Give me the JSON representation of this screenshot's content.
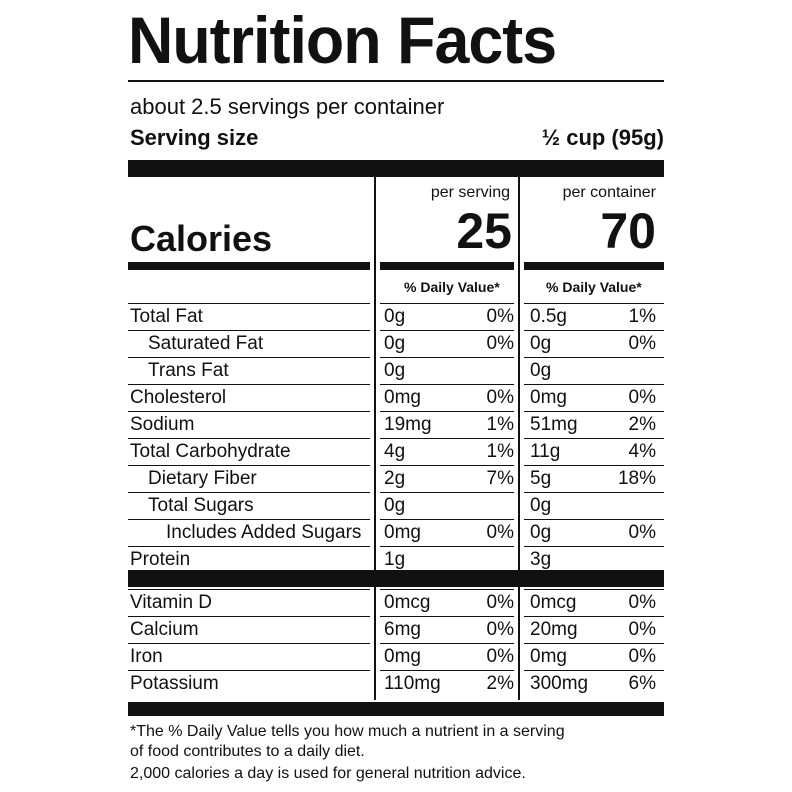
{
  "title": "Nutrition Facts",
  "servings_per_container": "about 2.5 servings per container",
  "serving_size_label": "Serving size",
  "serving_size_value": "½ cup (95g)",
  "calories_label": "Calories",
  "columns": {
    "per_serving_label": "per serving",
    "per_container_label": "per container",
    "calories_per_serving": "25",
    "calories_per_container": "70",
    "dv_header": "% Daily Value*"
  },
  "nutrients": [
    {
      "name": "Total Fat",
      "indent": 0,
      "serv_amt": "0g",
      "serv_dv": "0%",
      "cont_amt": "0.5g",
      "cont_dv": "1%"
    },
    {
      "name": "Saturated Fat",
      "indent": 1,
      "serv_amt": "0g",
      "serv_dv": "0%",
      "cont_amt": "0g",
      "cont_dv": "0%"
    },
    {
      "name": "Trans Fat",
      "indent": 1,
      "serv_amt": "0g",
      "serv_dv": "",
      "cont_amt": "0g",
      "cont_dv": ""
    },
    {
      "name": "Cholesterol",
      "indent": 0,
      "serv_amt": "0mg",
      "serv_dv": "0%",
      "cont_amt": "0mg",
      "cont_dv": "0%"
    },
    {
      "name": "Sodium",
      "indent": 0,
      "serv_amt": "19mg",
      "serv_dv": "1%",
      "cont_amt": "51mg",
      "cont_dv": "2%"
    },
    {
      "name": "Total Carbohydrate",
      "indent": 0,
      "serv_amt": "4g",
      "serv_dv": "1%",
      "cont_amt": "11g",
      "cont_dv": "4%"
    },
    {
      "name": "Dietary Fiber",
      "indent": 1,
      "serv_amt": "2g",
      "serv_dv": "7%",
      "cont_amt": "5g",
      "cont_dv": "18%"
    },
    {
      "name": "Total Sugars",
      "indent": 1,
      "serv_amt": "0g",
      "serv_dv": "",
      "cont_amt": "0g",
      "cont_dv": ""
    },
    {
      "name": "Includes Added Sugars",
      "indent": 2,
      "serv_amt": "0mg",
      "serv_dv": "0%",
      "cont_amt": "0g",
      "cont_dv": "0%"
    },
    {
      "name": "Protein",
      "indent": 0,
      "serv_amt": "1g",
      "serv_dv": "",
      "cont_amt": "3g",
      "cont_dv": ""
    }
  ],
  "vitamins": [
    {
      "name": "Vitamin D",
      "serv_amt": "0mcg",
      "serv_dv": "0%",
      "cont_amt": "0mcg",
      "cont_dv": "0%"
    },
    {
      "name": "Calcium",
      "serv_amt": "6mg",
      "serv_dv": "0%",
      "cont_amt": "20mg",
      "cont_dv": "0%"
    },
    {
      "name": "Iron",
      "serv_amt": "0mg",
      "serv_dv": "0%",
      "cont_amt": "0mg",
      "cont_dv": "0%"
    },
    {
      "name": "Potassium",
      "serv_amt": "110mg",
      "serv_dv": "2%",
      "cont_amt": "300mg",
      "cont_dv": "6%"
    }
  ],
  "footnote": {
    "line1": "*The % Daily Value tells you how much a nutrient in a serving",
    "line2": "of food contributes to a daily diet.",
    "line3": "2,000 calories a day is used for general nutrition advice."
  }
}
